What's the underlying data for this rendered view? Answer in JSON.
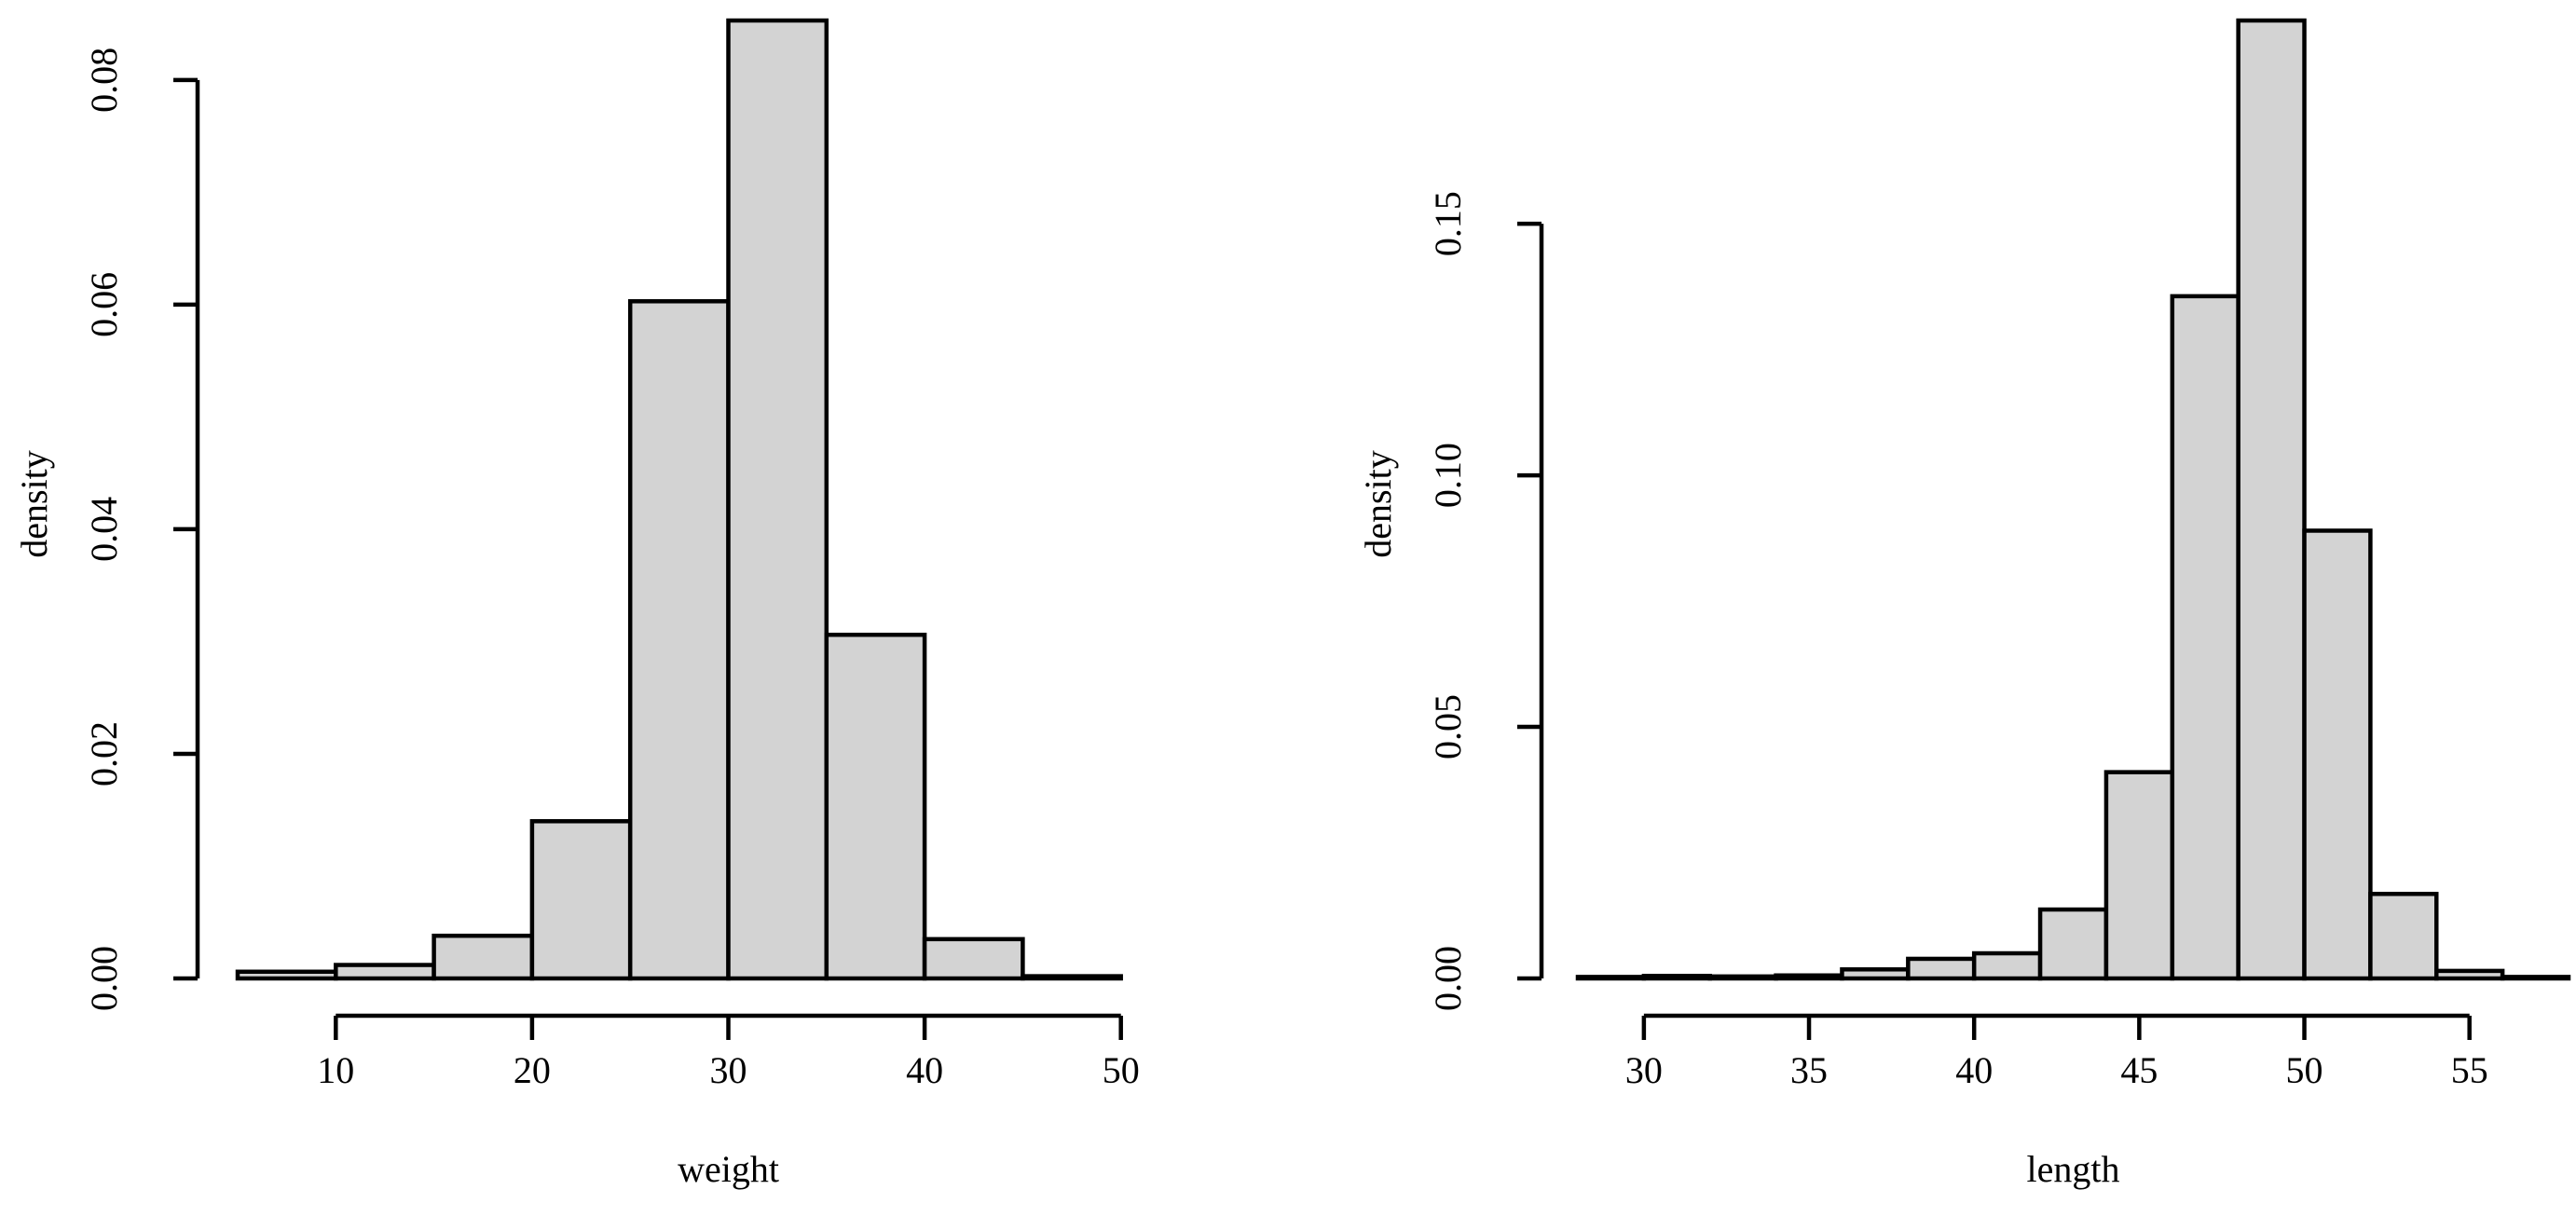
{
  "chart_data": [
    {
      "type": "bar",
      "subtype": "histogram",
      "xlabel": "weight",
      "ylabel": "density",
      "bin_edges": [
        5,
        10,
        15,
        20,
        25,
        30,
        35,
        40,
        45,
        50,
        55
      ],
      "values": [
        0.0006,
        0.0012,
        0.0038,
        0.014,
        0.0603,
        0.0853,
        0.0306,
        0.0035,
        0.0002,
        0.0
      ],
      "xlim": [
        5,
        55
      ],
      "ylim": [
        0,
        0.08
      ],
      "x_ticks": [
        10,
        20,
        30,
        40,
        50
      ],
      "x_tick_labels": [
        "10",
        "20",
        "30",
        "40",
        "50"
      ],
      "y_ticks": [
        0,
        0.02,
        0.04,
        0.06,
        0.08
      ],
      "y_tick_labels": [
        "0.00",
        "0.02",
        "0.04",
        "0.06",
        "0.08"
      ],
      "grid": false
    },
    {
      "type": "bar",
      "subtype": "histogram",
      "xlabel": "length",
      "ylabel": "density",
      "bin_edges": [
        28,
        30,
        32,
        34,
        36,
        38,
        40,
        42,
        44,
        46,
        48,
        50,
        52,
        54,
        56,
        58
      ],
      "values": [
        0.0003,
        0.0005,
        0.0004,
        0.0006,
        0.0018,
        0.0039,
        0.005,
        0.0137,
        0.041,
        0.1356,
        0.1904,
        0.089,
        0.0168,
        0.0015,
        0.0003
      ],
      "xlim": [
        28,
        58
      ],
      "ylim": [
        0,
        0.15
      ],
      "x_ticks": [
        30,
        35,
        40,
        45,
        50,
        55
      ],
      "x_tick_labels": [
        "30",
        "35",
        "40",
        "45",
        "50",
        "55"
      ],
      "y_ticks": [
        0,
        0.05,
        0.1,
        0.15
      ],
      "y_tick_labels": [
        "0.00",
        "0.05",
        "0.10",
        "0.15"
      ],
      "grid": false
    }
  ]
}
